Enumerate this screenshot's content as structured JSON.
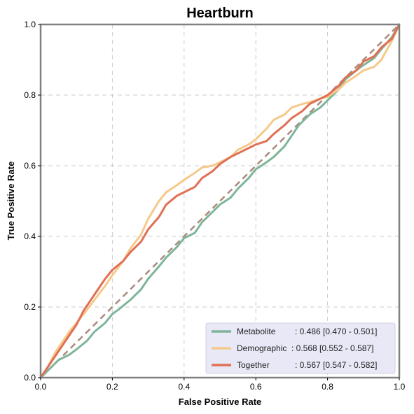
{
  "chart_data": {
    "type": "line",
    "title": "Heartburn",
    "xlabel": "False Positive Rate",
    "ylabel": "True Positive Rate",
    "xlim": [
      0,
      1
    ],
    "ylim": [
      0,
      1
    ],
    "xticks": [
      "0.0",
      "0.2",
      "0.4",
      "0.6",
      "0.8",
      "1.0"
    ],
    "yticks": [
      "0.0",
      "0.2",
      "0.4",
      "0.6",
      "0.8",
      "1.0"
    ],
    "grid": true,
    "legend_position": "bottom-right",
    "diagonal": {
      "color": "#a88b7e",
      "style": "dashed"
    },
    "series": [
      {
        "name": "Metabolite",
        "legend_name": "Metabolite",
        "legend_stats": ": 0.486 [0.470 - 0.501]",
        "color": "#7eb59a",
        "x": [
          0.0,
          0.02,
          0.05,
          0.08,
          0.1,
          0.13,
          0.15,
          0.18,
          0.2,
          0.22,
          0.25,
          0.28,
          0.3,
          0.33,
          0.35,
          0.38,
          0.4,
          0.43,
          0.45,
          0.48,
          0.5,
          0.53,
          0.55,
          0.58,
          0.6,
          0.63,
          0.65,
          0.68,
          0.7,
          0.72,
          0.75,
          0.78,
          0.8,
          0.83,
          0.85,
          0.88,
          0.9,
          0.93,
          0.95,
          0.98,
          1.0
        ],
        "y": [
          0.0,
          0.02,
          0.05,
          0.065,
          0.08,
          0.105,
          0.13,
          0.155,
          0.18,
          0.195,
          0.22,
          0.25,
          0.28,
          0.315,
          0.34,
          0.37,
          0.395,
          0.41,
          0.44,
          0.47,
          0.49,
          0.51,
          0.535,
          0.565,
          0.59,
          0.61,
          0.625,
          0.655,
          0.685,
          0.715,
          0.745,
          0.765,
          0.785,
          0.815,
          0.845,
          0.87,
          0.885,
          0.905,
          0.93,
          0.965,
          1.0
        ]
      },
      {
        "name": "Demographic",
        "legend_name": "Demographic",
        "legend_stats": ": 0.568 [0.552 - 0.587]",
        "color": "#f5c98a",
        "x": [
          0.0,
          0.02,
          0.04,
          0.06,
          0.08,
          0.1,
          0.12,
          0.15,
          0.18,
          0.2,
          0.23,
          0.25,
          0.28,
          0.3,
          0.33,
          0.35,
          0.38,
          0.4,
          0.43,
          0.45,
          0.48,
          0.5,
          0.53,
          0.55,
          0.58,
          0.6,
          0.63,
          0.65,
          0.68,
          0.7,
          0.73,
          0.75,
          0.78,
          0.8,
          0.83,
          0.85,
          0.88,
          0.9,
          0.93,
          0.95,
          0.98,
          1.0
        ],
        "y": [
          0.0,
          0.03,
          0.07,
          0.1,
          0.13,
          0.155,
          0.18,
          0.22,
          0.26,
          0.29,
          0.33,
          0.365,
          0.405,
          0.45,
          0.5,
          0.525,
          0.545,
          0.56,
          0.58,
          0.595,
          0.6,
          0.61,
          0.625,
          0.645,
          0.66,
          0.675,
          0.705,
          0.73,
          0.745,
          0.765,
          0.775,
          0.78,
          0.79,
          0.795,
          0.815,
          0.835,
          0.855,
          0.87,
          0.88,
          0.9,
          0.955,
          1.0
        ]
      },
      {
        "name": "Together",
        "legend_name": "Together",
        "legend_stats": ": 0.567 [0.547 - 0.582]",
        "color": "#e07055",
        "x": [
          0.0,
          0.02,
          0.04,
          0.06,
          0.08,
          0.1,
          0.12,
          0.14,
          0.16,
          0.18,
          0.2,
          0.23,
          0.25,
          0.28,
          0.3,
          0.33,
          0.35,
          0.38,
          0.4,
          0.43,
          0.45,
          0.48,
          0.5,
          0.53,
          0.55,
          0.58,
          0.6,
          0.63,
          0.65,
          0.68,
          0.7,
          0.73,
          0.75,
          0.78,
          0.8,
          0.83,
          0.85,
          0.88,
          0.9,
          0.93,
          0.95,
          0.98,
          1.0
        ],
        "y": [
          0.0,
          0.03,
          0.06,
          0.09,
          0.12,
          0.15,
          0.19,
          0.22,
          0.25,
          0.28,
          0.305,
          0.33,
          0.355,
          0.385,
          0.42,
          0.455,
          0.49,
          0.515,
          0.525,
          0.54,
          0.565,
          0.585,
          0.605,
          0.625,
          0.635,
          0.65,
          0.66,
          0.67,
          0.69,
          0.715,
          0.735,
          0.755,
          0.775,
          0.79,
          0.8,
          0.825,
          0.85,
          0.87,
          0.895,
          0.91,
          0.935,
          0.96,
          1.0
        ]
      }
    ]
  }
}
